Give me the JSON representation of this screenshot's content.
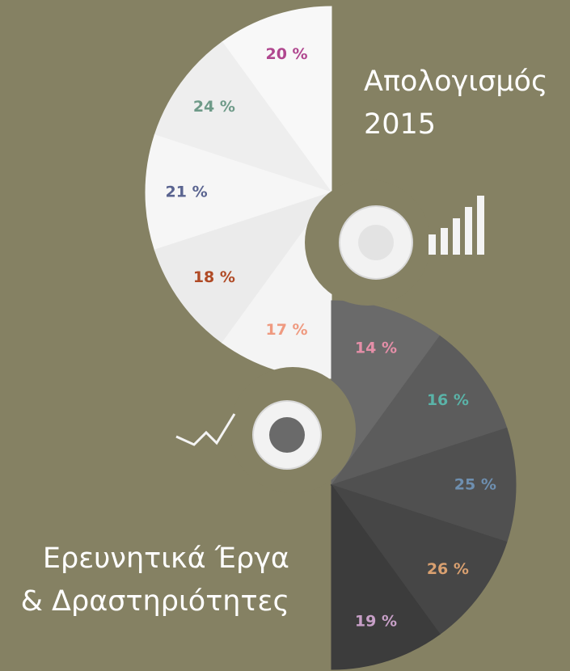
{
  "top": {
    "title": [
      "Απολογισμός",
      "2015"
    ],
    "segments": [
      {
        "label": "20 %",
        "color": "#b0478f"
      },
      {
        "label": "24 %",
        "color": "#6e9a88"
      },
      {
        "label": "21 %",
        "color": "#5a6490"
      },
      {
        "label": "18 %",
        "color": "#b04a25"
      },
      {
        "label": "17 %",
        "color": "#ef9a80"
      }
    ]
  },
  "bottom": {
    "title": [
      "Ερευνητικά Έργα",
      "& Δραστηριότητες"
    ],
    "segments": [
      {
        "label": "14 %",
        "color": "#e58fa8"
      },
      {
        "label": "16 %",
        "color": "#5ab3a8"
      },
      {
        "label": "25 %",
        "color": "#6e8fb0"
      },
      {
        "label": "26 %",
        "color": "#d9a070"
      },
      {
        "label": "19 %",
        "color": "#c8a0c8"
      }
    ]
  }
}
